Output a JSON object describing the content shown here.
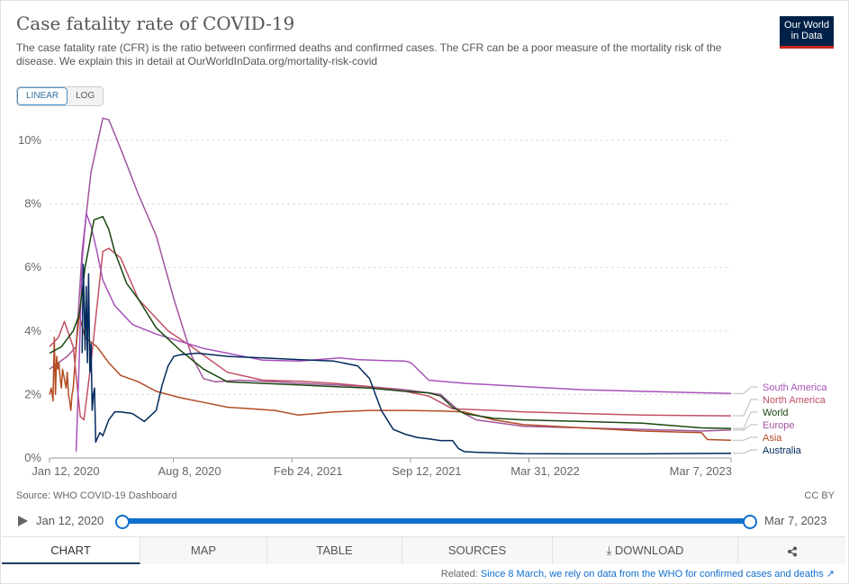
{
  "header": {
    "title": "Case fatality rate of COVID-19",
    "subtitle": "The case fatality rate (CFR) is the ratio between confirmed deaths and confirmed cases. The CFR can be a poor measure of the mortality risk of the disease. We explain this in detail at OurWorldInData.org/mortality-risk-covid",
    "logo_line1": "Our World",
    "logo_line2": "in Data"
  },
  "controls": {
    "linear_label": "LINEAR",
    "log_label": "LOG"
  },
  "colors": {
    "South America": "#a652ba",
    "North America": "#c15065",
    "World": "#18470f",
    "Europe": "#a2559c",
    "Asia": "#b24c24",
    "Australia": "#00295b"
  },
  "chart_data": {
    "type": "line",
    "title": "Case fatality rate of COVID-19",
    "ylabel": "",
    "xlabel": "",
    "ylim": [
      0,
      10
    ],
    "y_ticks": [
      "0%",
      "2%",
      "4%",
      "6%",
      "8%",
      "10%"
    ],
    "x_ticks": [
      "Jan 12, 2020",
      "Aug 8, 2020",
      "Feb 24, 2021",
      "Sep 12, 2021",
      "Mar 31, 2022",
      "Mar 7, 2023"
    ],
    "x_tick_days": [
      0,
      209,
      409,
      609,
      809,
      1150
    ],
    "series": [
      {
        "name": "South America",
        "color": "#a652ba",
        "x": [
          45,
          50,
          55,
          62,
          70,
          80,
          90,
          110,
          140,
          180,
          260,
          360,
          420,
          490,
          520,
          560,
          600,
          610,
          640,
          700,
          750,
          800,
          900,
          1000,
          1150
        ],
        "values": [
          0.2,
          3.0,
          6.2,
          7.7,
          7.3,
          6.5,
          5.6,
          4.8,
          4.2,
          3.9,
          3.45,
          3.08,
          3.05,
          3.15,
          3.1,
          3.07,
          3.05,
          3.0,
          2.45,
          2.35,
          2.3,
          2.25,
          2.15,
          2.1,
          2.03
        ]
      },
      {
        "name": "North America",
        "color": "#c15065",
        "x": [
          0,
          15,
          25,
          40,
          52,
          58,
          70,
          90,
          100,
          120,
          150,
          200,
          240,
          300,
          360,
          420,
          480,
          540,
          600,
          640,
          680,
          750,
          800,
          900,
          1000,
          1150
        ],
        "values": [
          3.5,
          3.8,
          4.3,
          3.5,
          1.3,
          1.2,
          3.0,
          6.5,
          6.6,
          6.3,
          5.0,
          4.0,
          3.5,
          2.7,
          2.45,
          2.42,
          2.35,
          2.25,
          2.1,
          1.95,
          1.55,
          1.5,
          1.45,
          1.4,
          1.35,
          1.33
        ]
      },
      {
        "name": "World",
        "color": "#18470f",
        "x": [
          0,
          20,
          40,
          50,
          60,
          75,
          90,
          100,
          110,
          130,
          150,
          180,
          220,
          260,
          300,
          360,
          420,
          480,
          540,
          600,
          640,
          660,
          680,
          700,
          750,
          800,
          900,
          1000,
          1100,
          1150
        ],
        "values": [
          3.3,
          3.5,
          4.0,
          4.5,
          6.0,
          7.5,
          7.6,
          7.2,
          6.5,
          5.5,
          5.0,
          4.1,
          3.4,
          2.8,
          2.4,
          2.35,
          2.3,
          2.25,
          2.2,
          2.1,
          2.05,
          1.95,
          1.6,
          1.4,
          1.25,
          1.2,
          1.15,
          1.1,
          0.95,
          0.93
        ]
      },
      {
        "name": "Europe",
        "color": "#a2559c",
        "x": [
          0,
          30,
          45,
          55,
          70,
          90,
          100,
          110,
          125,
          150,
          180,
          210,
          240,
          260,
          280,
          320,
          380,
          420,
          480,
          540,
          600,
          660,
          690,
          720,
          800,
          900,
          1000,
          1100,
          1150
        ],
        "values": [
          2.8,
          3.2,
          3.5,
          6.5,
          9.0,
          10.7,
          10.65,
          10.2,
          9.5,
          8.3,
          7.0,
          5.0,
          3.2,
          2.5,
          2.4,
          2.45,
          2.4,
          2.35,
          2.3,
          2.25,
          2.15,
          2.0,
          1.5,
          1.2,
          1.0,
          0.95,
          0.9,
          0.85,
          0.88
        ]
      },
      {
        "name": "Asia",
        "color": "#b24c24",
        "x": [
          0,
          3,
          6,
          8,
          10,
          12,
          14,
          16,
          18,
          20,
          22,
          24,
          26,
          28,
          30,
          32,
          34,
          36,
          38,
          40,
          45,
          50,
          60,
          80,
          100,
          120,
          150,
          180,
          220,
          260,
          300,
          340,
          380,
          420,
          480,
          540,
          600,
          660,
          700,
          750,
          800,
          900,
          1000,
          1100,
          1110,
          1150
        ],
        "values": [
          2.0,
          2.2,
          1.8,
          3.8,
          2.0,
          3.2,
          2.8,
          3.0,
          2.5,
          2.2,
          2.8,
          2.6,
          2.4,
          2.2,
          2.7,
          2.0,
          1.8,
          1.5,
          2.0,
          2.2,
          3.5,
          4.5,
          3.8,
          3.5,
          3.0,
          2.6,
          2.4,
          2.1,
          1.9,
          1.75,
          1.6,
          1.55,
          1.5,
          1.35,
          1.45,
          1.5,
          1.5,
          1.48,
          1.45,
          1.2,
          1.05,
          0.95,
          0.85,
          0.8,
          0.58,
          0.56
        ]
      },
      {
        "name": "Australia",
        "color": "#00295b",
        "x": [
          55,
          57,
          60,
          62,
          64,
          66,
          68,
          70,
          72,
          74,
          76,
          78,
          80,
          85,
          90,
          100,
          110,
          120,
          140,
          160,
          180,
          190,
          200,
          210,
          220,
          250,
          300,
          360,
          420,
          480,
          520,
          540,
          560,
          580,
          600,
          620,
          640,
          660,
          680,
          690,
          700,
          720,
          800,
          900,
          1000,
          1150
        ],
        "values": [
          3.3,
          6.1,
          3.4,
          5.4,
          3.0,
          5.8,
          2.7,
          3.6,
          1.5,
          2.0,
          2.2,
          0.5,
          0.6,
          0.8,
          0.7,
          1.2,
          1.45,
          1.45,
          1.4,
          1.15,
          1.5,
          2.3,
          2.9,
          3.2,
          3.25,
          3.3,
          3.2,
          3.15,
          3.1,
          3.05,
          2.9,
          2.5,
          1.5,
          0.9,
          0.75,
          0.65,
          0.6,
          0.55,
          0.55,
          0.3,
          0.2,
          0.18,
          0.14,
          0.13,
          0.13,
          0.15
        ]
      }
    ],
    "label_order": [
      "South America",
      "North America",
      "World",
      "Europe",
      "Asia",
      "Australia"
    ]
  },
  "footer": {
    "source": "Source: WHO COVID-19 Dashboard",
    "license": "CC BY",
    "timeline_start": "Jan 12, 2020",
    "timeline_end": "Mar 7, 2023",
    "tabs": [
      "CHART",
      "MAP",
      "TABLE",
      "SOURCES",
      "DOWNLOAD",
      ""
    ],
    "related_prefix": "Related:",
    "related_link": "Since 8 March, we rely on data from the WHO for confirmed cases and deaths"
  }
}
